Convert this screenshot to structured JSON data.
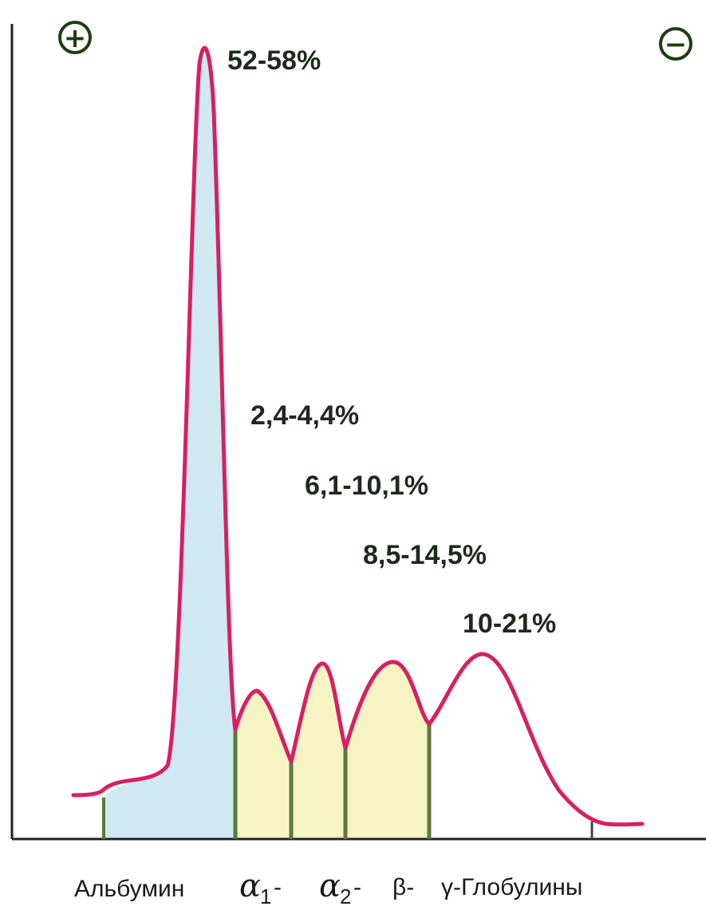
{
  "poles": {
    "anode_symbol": "+",
    "cathode_symbol": "−"
  },
  "peak_labels": {
    "albumin": "52-58%",
    "alpha1": "2,4-4,4%",
    "alpha2": "6,1-10,1%",
    "beta": "8,5-14,5%",
    "gamma": "10-21%"
  },
  "fraction_labels": {
    "albumin": "Альбумин",
    "alpha1_letter": "α",
    "alpha1_sub": "1",
    "alpha1_suffix": "-",
    "alpha2_letter": "α",
    "alpha2_sub": "2",
    "alpha2_suffix": "-",
    "beta": "β-",
    "gamma": "γ-Глобулины"
  },
  "colors": {
    "curve": "#d81f63",
    "albumin_fill": "#cfe8f2",
    "globulin_fill": "#f6f4c4",
    "divider": "#5a7a3a",
    "axis": "#222222",
    "pole_ring": "#1e3d12"
  }
}
